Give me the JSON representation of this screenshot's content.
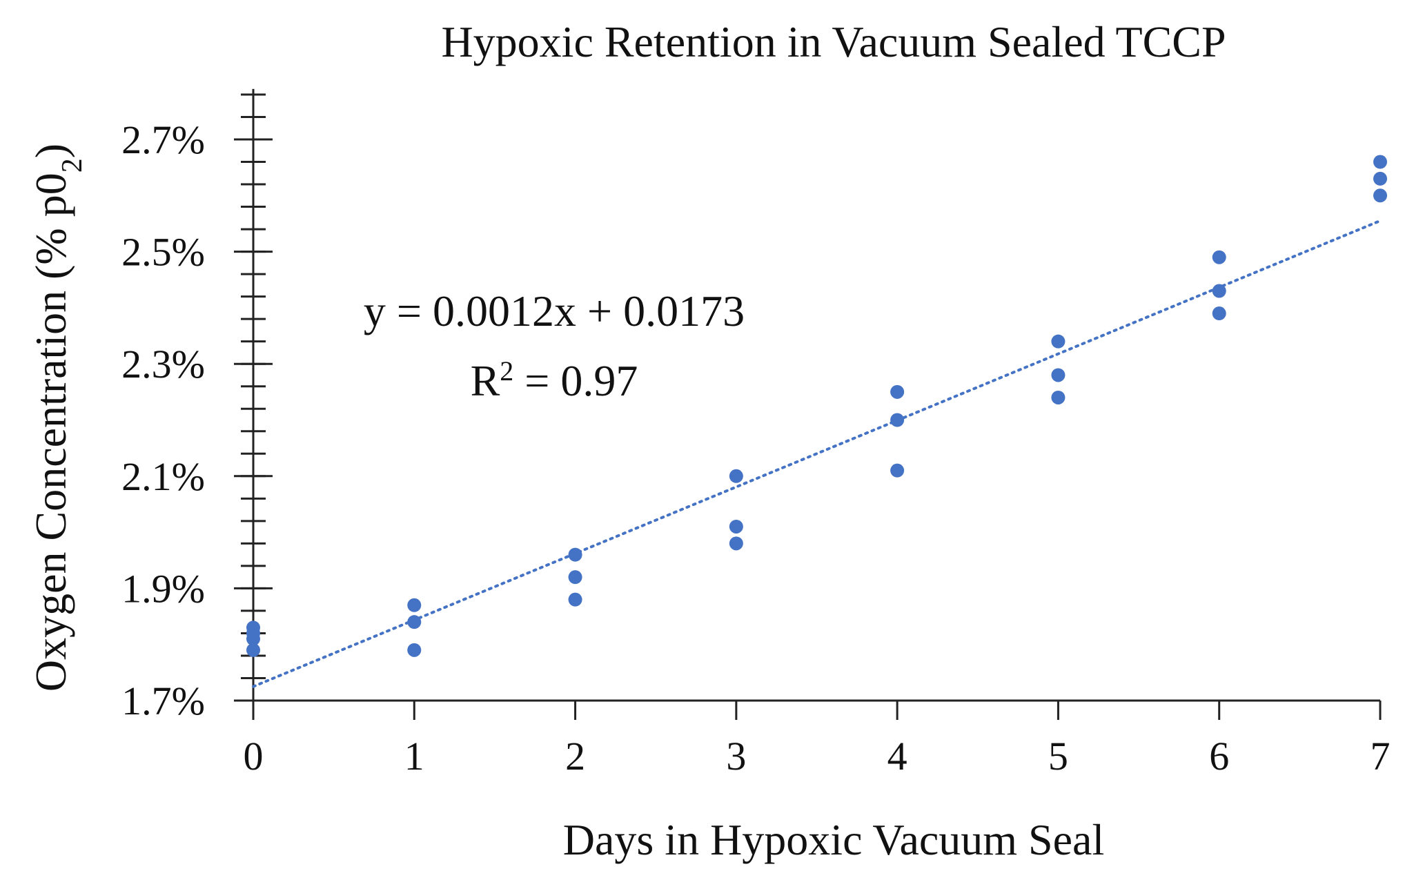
{
  "chart_data": {
    "type": "scatter",
    "title": "Hypoxic Retention in Vacuum Sealed TCCP",
    "xlabel": "Days in Hypoxic Vacuum Seal",
    "ylabel_main": "Oxygen Concentration (% p0",
    "ylabel_sub": "2",
    "ylabel_end": ")",
    "xlim": [
      0,
      7
    ],
    "ylim": [
      1.7,
      2.8
    ],
    "x_ticks": [
      "0",
      "1",
      "2",
      "3",
      "4",
      "5",
      "6",
      "7"
    ],
    "y_ticks": [
      {
        "value": 1.7,
        "label": "1.7%"
      },
      {
        "value": 1.9,
        "label": "1.9%"
      },
      {
        "value": 2.1,
        "label": "2.1%"
      },
      {
        "value": 2.3,
        "label": "2.3%"
      },
      {
        "value": 2.5,
        "label": "2.5%"
      },
      {
        "value": 2.7,
        "label": "2.7%"
      }
    ],
    "y_minor_step": 0.04,
    "series": [
      {
        "color": "#4472C4",
        "x": [
          0,
          0,
          0,
          0,
          1,
          1,
          1,
          2,
          2,
          2,
          3,
          3,
          3,
          4,
          4,
          4,
          5,
          5,
          5,
          6,
          6,
          6,
          7,
          7,
          7
        ],
        "y": [
          1.83,
          1.82,
          1.81,
          1.79,
          1.87,
          1.84,
          1.79,
          1.96,
          1.92,
          1.88,
          2.1,
          2.01,
          1.98,
          2.25,
          2.2,
          2.11,
          2.34,
          2.28,
          2.24,
          2.49,
          2.43,
          2.39,
          2.66,
          2.63,
          2.6
        ]
      }
    ],
    "trendline": {
      "type": "linear",
      "color": "#4472C4",
      "x_start": 0,
      "x_end": 7,
      "y_start": 1.725,
      "y_end": 2.555
    },
    "annotations": {
      "equation": "y = 0.0012x + 0.0173",
      "r2_label": "R",
      "r2_sup": "2",
      "r2_value": " = 0.97"
    },
    "grid": false
  }
}
